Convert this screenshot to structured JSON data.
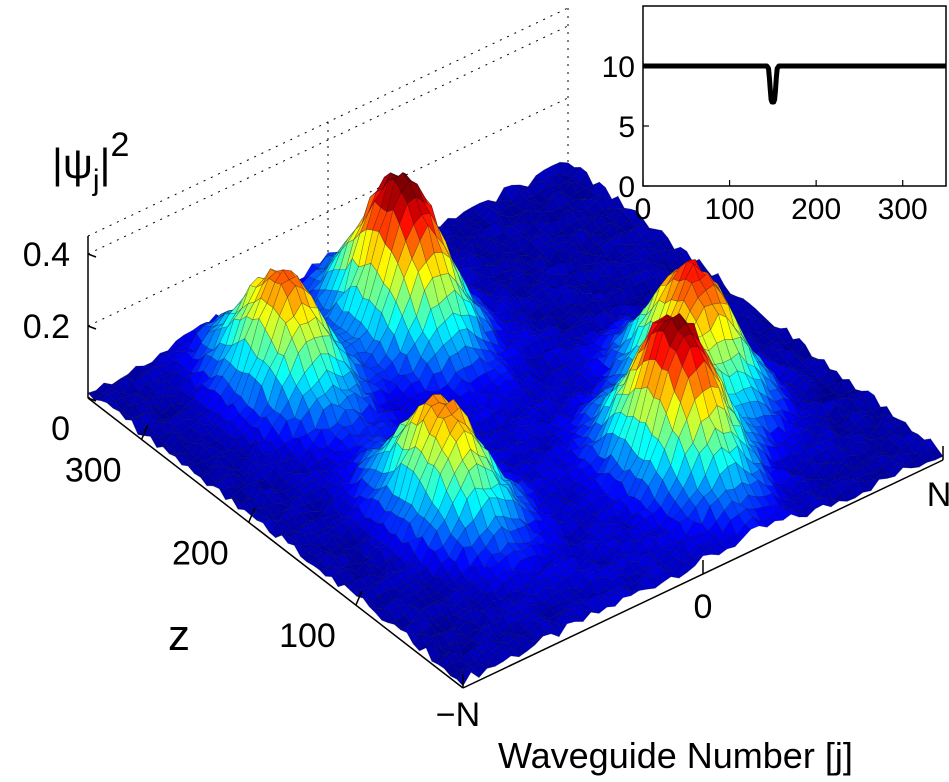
{
  "chart_data": [
    {
      "type": "surface",
      "zlabel": "|ψj|²",
      "zlabel_parts": {
        "base": "|ψ",
        "sub": "j",
        "close": "|",
        "sup": "2"
      },
      "ylabel": "z",
      "xlabel": "Waveguide Number  [j]",
      "x_ticks": [
        "−N",
        "0",
        "N"
      ],
      "y_ticks": [
        "100",
        "200",
        "300"
      ],
      "z_ticks": [
        "0",
        "0.2",
        "0.4"
      ],
      "xlim": [
        -1,
        1
      ],
      "ylim": [
        0,
        350
      ],
      "zlim": [
        0,
        0.45
      ],
      "colormap": "jet",
      "grid": true,
      "peaks": [
        {
          "x": -0.5,
          "z": 280,
          "height": 0.32
        },
        {
          "x": 0.0,
          "z": 280,
          "height": 0.43
        },
        {
          "x": -0.5,
          "z": 130,
          "height": 0.31
        },
        {
          "x": 0.25,
          "z": 80,
          "height": 0.42
        },
        {
          "x": 0.55,
          "z": 130,
          "height": 0.36
        }
      ]
    },
    {
      "type": "line",
      "x_ticks": [
        "0",
        "100",
        "200",
        "300"
      ],
      "y_ticks": [
        "0",
        "5",
        "10"
      ],
      "xlim": [
        0,
        350
      ],
      "ylim": [
        0,
        15
      ],
      "series": [
        {
          "x": [
            0,
            143,
            145,
            146,
            147,
            148,
            149,
            151,
            152,
            153,
            154,
            155,
            157,
            350
          ],
          "y": [
            10,
            10,
            9.8,
            9,
            8,
            7.2,
            7,
            7,
            7.2,
            8,
            9,
            9.8,
            10,
            10
          ]
        }
      ]
    }
  ],
  "colors": {
    "line": "#000000",
    "grid": "#000000",
    "colormap_low": "#0a2cc8",
    "colormap_high": "#c8141e"
  }
}
